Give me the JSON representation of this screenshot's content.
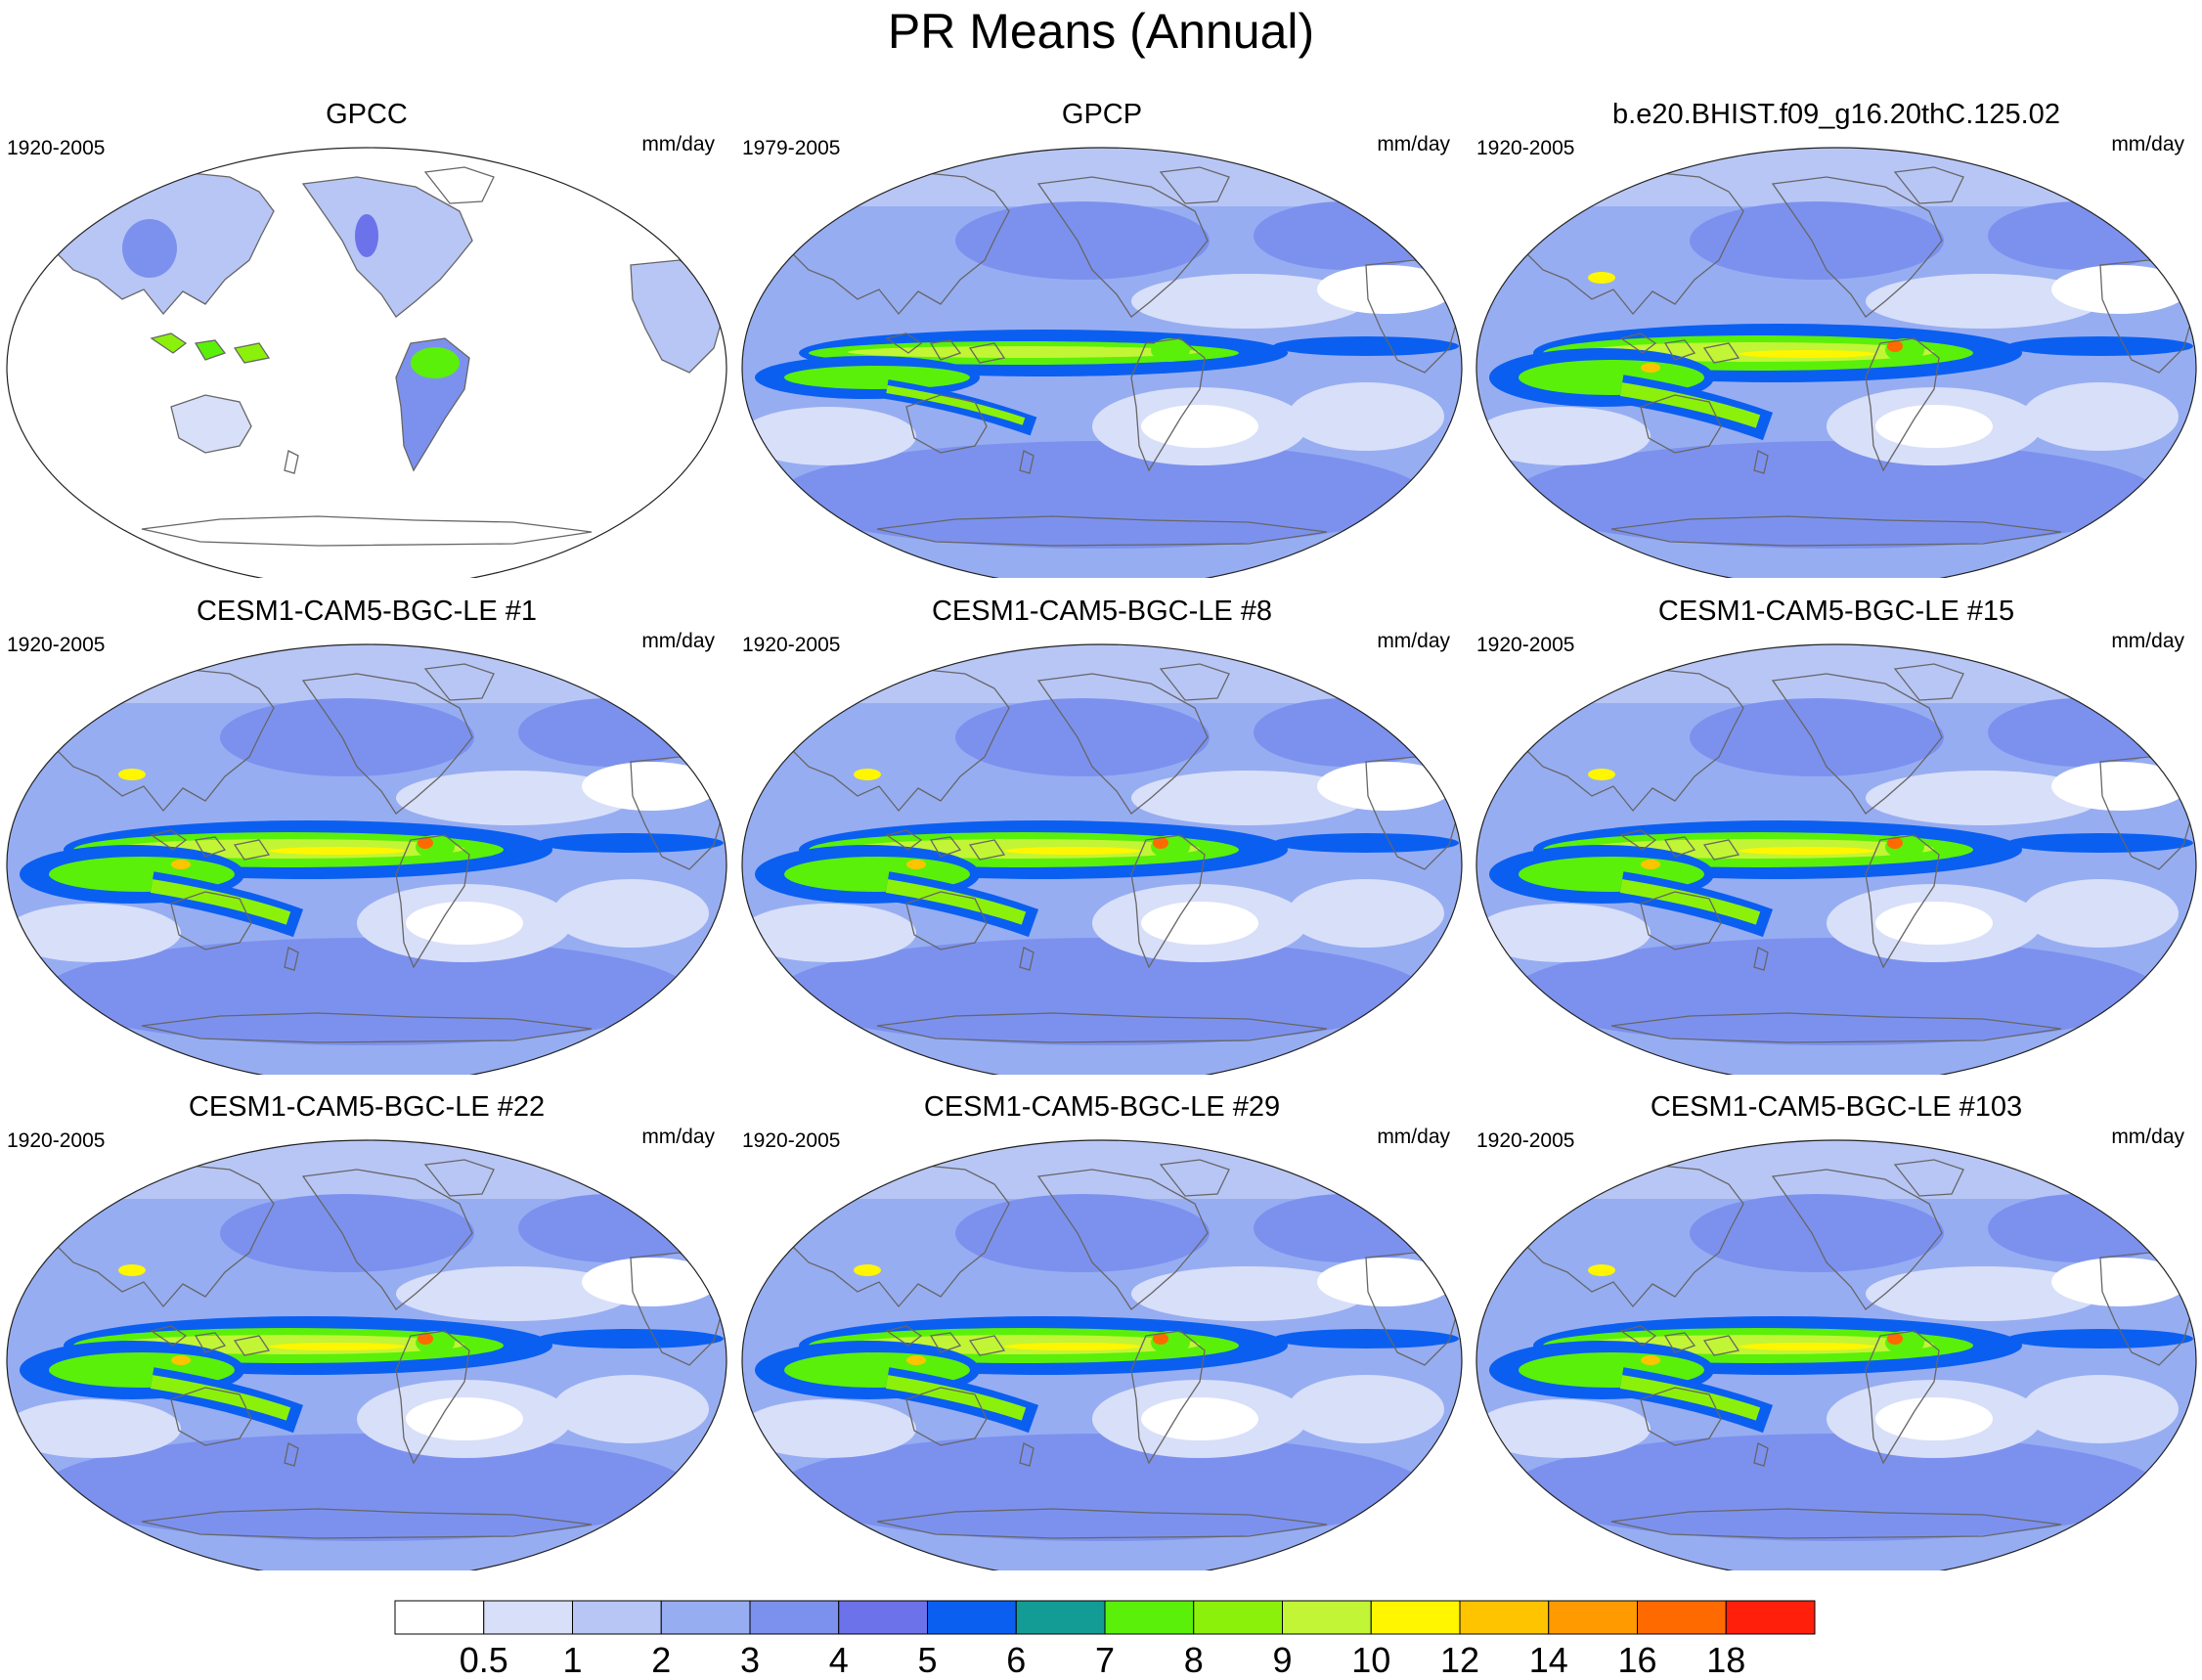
{
  "title": "PR Means (Annual)",
  "units": "mm/day",
  "panels": [
    {
      "title": "GPCC",
      "period": "1920-2005",
      "type": "gpcc"
    },
    {
      "title": "GPCP",
      "period": "1979-2005",
      "type": "gpcp"
    },
    {
      "title": "b.e20.BHIST.f09_g16.20thC.125.02",
      "period": "1920-2005",
      "type": "model"
    },
    {
      "title": "CESM1-CAM5-BGC-LE #1",
      "period": "1920-2005",
      "type": "model"
    },
    {
      "title": "CESM1-CAM5-BGC-LE #8",
      "period": "1920-2005",
      "type": "model"
    },
    {
      "title": "CESM1-CAM5-BGC-LE #15",
      "period": "1920-2005",
      "type": "model"
    },
    {
      "title": "CESM1-CAM5-BGC-LE #22",
      "period": "1920-2005",
      "type": "model"
    },
    {
      "title": "CESM1-CAM5-BGC-LE #29",
      "period": "1920-2005",
      "type": "model"
    },
    {
      "title": "CESM1-CAM5-BGC-LE #103",
      "period": "1920-2005",
      "type": "model"
    }
  ],
  "colorbar": {
    "labels": [
      "0.5",
      "1",
      "2",
      "3",
      "4",
      "5",
      "6",
      "7",
      "8",
      "9",
      "10",
      "12",
      "14",
      "16",
      "18"
    ],
    "colors": [
      "#ffffff",
      "#d8dff9",
      "#b8c6f5",
      "#97adf2",
      "#7c91ee",
      "#6c72ea",
      "#0a5ff0",
      "#129c95",
      "#5af00a",
      "#8cf10a",
      "#c2f535",
      "#fff600",
      "#ffc400",
      "#ff9a00",
      "#ff6a00",
      "#ff1f0a"
    ]
  }
}
